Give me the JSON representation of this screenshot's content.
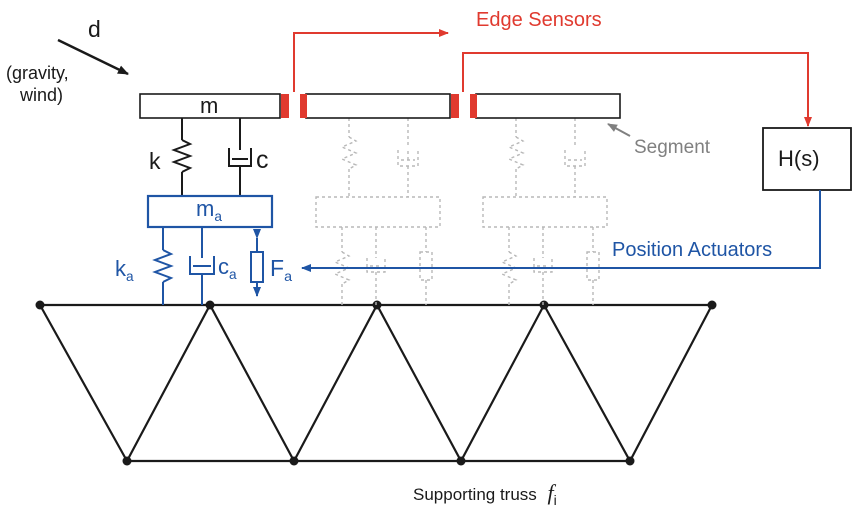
{
  "labels": {
    "disturbance": "d",
    "disturbance_note_1": "(gravity,",
    "disturbance_note_2": "wind)",
    "mass": "m",
    "spring": "k",
    "damper": "c",
    "actuator_mass": "m",
    "actuator_mass_sub": "a",
    "actuator_spring": "k",
    "actuator_spring_sub": "a",
    "actuator_damper": "c",
    "actuator_damper_sub": "a",
    "actuator_force": "F",
    "actuator_force_sub": "a",
    "edge_sensors": "Edge Sensors",
    "segment": "Segment",
    "controller": "H(s)",
    "position_actuators": "Position Actuators",
    "truss": "Supporting truss",
    "truss_symbol": "f",
    "truss_symbol_sub": "i"
  },
  "colors": {
    "sensor_red": "#e03a2f",
    "actuator_blue": "#1f55a5",
    "structure_black": "#1a1a1a",
    "ghost_gray": "#b8b8b8",
    "segment_gray": "#808080"
  }
}
